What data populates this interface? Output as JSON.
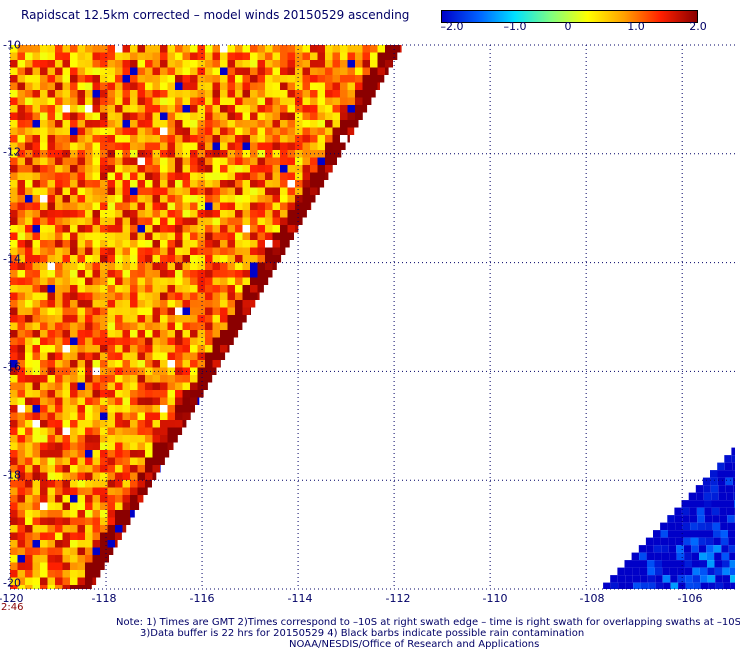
{
  "title": "Rapidscat 12.5km corrected – model winds 20150529 ascending",
  "colorbar": {
    "labels": [
      "–2.0",
      "–1.0",
      "0",
      "1.0",
      "2.0"
    ],
    "range": [
      -2.0,
      2.0
    ],
    "stops": [
      "#0000c8",
      "#0060ff",
      "#00e0ff",
      "#80ff80",
      "#ffff00",
      "#ffa000",
      "#ff2000",
      "#8b0000"
    ]
  },
  "axes": {
    "lat_ticks": [
      "-10",
      "-12",
      "-14",
      "-16",
      "-18",
      "-20"
    ],
    "lon_ticks": [
      "-120",
      "-118",
      "-116",
      "-114",
      "-112",
      "-110",
      "-108",
      "-106"
    ],
    "lat_range": [
      -20,
      -10
    ],
    "lon_range": [
      -120,
      -104.9
    ],
    "grid": "dotted"
  },
  "swaths": [
    {
      "name": "west",
      "lat_range": [
        -20,
        -10
      ],
      "edge_lon_at_south": -118.3,
      "edge_lon_at_north": -111.8,
      "value_bias": 1.0
    },
    {
      "name": "east",
      "lat_range": [
        -20,
        -17.4
      ],
      "edge_lon_at_south": -107.7,
      "edge_lon_at_north": -104.9,
      "value_bias": -1.6
    }
  ],
  "time_label": "2:46",
  "notes": [
    "Note: 1) Times are GMT 2)Times correspond to –10S at right swath edge – time is right swath for overlapping swaths at –10S",
    "3)Data buffer is 22 hrs for 20150529 4) Black barbs indicate possible rain contamination",
    "NOAA/NESDIS/Office of Research and Applications"
  ]
}
